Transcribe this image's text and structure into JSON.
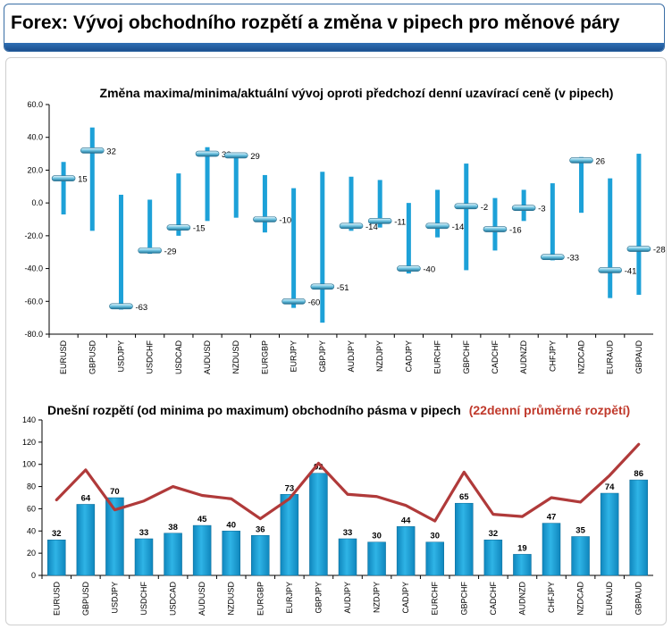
{
  "header": {
    "title": "Forex: Vývoj obchodního rozpětí a změna v pipech pro měnové páry"
  },
  "colors": {
    "bar": "#1da1d8",
    "avg_line": "#b03a3a",
    "marker": "#5aa8c8",
    "header_bar": "#1f5c9e"
  },
  "chart_data": [
    {
      "type": "range",
      "title": "Změna maxima/minima/aktuální vývoj oproti předchozí denní uzavírací ceně (v pipech)",
      "ylim": [
        -80,
        60
      ],
      "yticks": [
        "60.0",
        "40.0",
        "20.0",
        "0.0",
        "-20.0",
        "-40.0",
        "-60.0",
        "-80.0"
      ],
      "categories": [
        "EURUSD",
        "GBPUSD",
        "USDJPY",
        "USDCHF",
        "USDCAD",
        "AUDUSD",
        "NZDUSD",
        "EURGBP",
        "EURJPY",
        "GBPJPY",
        "AUDJPY",
        "NZDJPY",
        "CADJPY",
        "EURCHF",
        "GBPCHF",
        "CADCHF",
        "AUDNZD",
        "CHFJPY",
        "NZDCAD",
        "EURAUD",
        "GBPAUD"
      ],
      "high": [
        25,
        46,
        5,
        2,
        18,
        34,
        29,
        17,
        9,
        19,
        16,
        14,
        0,
        8,
        24,
        3,
        8,
        12,
        28,
        15,
        30
      ],
      "low": [
        -7,
        -17,
        -65,
        -31,
        -20,
        -11,
        -9,
        -18,
        -64,
        -73,
        -17,
        -15,
        -43,
        -21,
        -41,
        -29,
        -11,
        -35,
        -6,
        -58,
        -56
      ],
      "current": [
        15,
        32,
        -63,
        -29,
        -15,
        30,
        29,
        -10,
        -60,
        -51,
        -14,
        -11,
        -40,
        -14,
        -2,
        -16,
        -3,
        -33,
        26,
        -41,
        -28
      ],
      "labels": [
        "15",
        "32",
        "-63",
        "-29",
        "-15",
        "30",
        "29",
        "-10",
        "-60",
        "-51",
        "-14",
        "-11",
        "-40",
        "-14",
        "-2",
        "-16",
        "-3",
        "-33",
        "26",
        "-41",
        "-28"
      ]
    },
    {
      "type": "bar+line",
      "title": "Dnešní rozpětí (od minima po maximum) obchodního pásma v pipech",
      "title_highlight": "(22denní průměrné rozpětí)",
      "ylim": [
        0,
        140
      ],
      "yticks": [
        "140",
        "120",
        "100",
        "80",
        "60",
        "40",
        "20",
        "0"
      ],
      "categories": [
        "EURUSD",
        "GBPUSD",
        "USDJPY",
        "USDCHF",
        "USDCAD",
        "AUDUSD",
        "NZDUSD",
        "EURGBP",
        "EURJPY",
        "GBPJPY",
        "AUDJPY",
        "NZDJPY",
        "CADJPY",
        "EURCHF",
        "GBPCHF",
        "CADCHF",
        "AUDNZD",
        "CHFJPY",
        "NZDCAD",
        "EURAUD",
        "GBPAUD"
      ],
      "values": [
        32,
        64,
        70,
        33,
        38,
        45,
        40,
        36,
        73,
        92,
        33,
        30,
        44,
        30,
        65,
        32,
        19,
        47,
        35,
        74,
        86
      ],
      "labels": [
        "32",
        "64",
        "70",
        "33",
        "38",
        "45",
        "40",
        "36",
        "73",
        "92",
        "33",
        "30",
        "44",
        "30",
        "65",
        "32",
        "19",
        "47",
        "35",
        "74",
        "86"
      ],
      "average": [
        68,
        95,
        59,
        67,
        80,
        72,
        69,
        51,
        69,
        101,
        73,
        71,
        63,
        49,
        93,
        55,
        53,
        70,
        66,
        90,
        118
      ]
    }
  ]
}
